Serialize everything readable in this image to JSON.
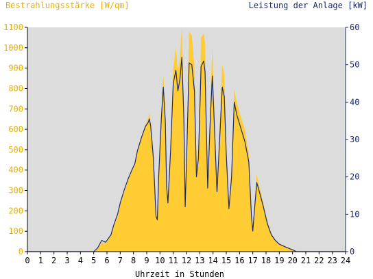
{
  "chart_data": {
    "type": "area",
    "title_left": "Bestrahlungsstärke [W/qm]",
    "title_right": "Leistung der Anlage [kW]",
    "xlabel": "Uhrzeit in Stunden",
    "x_ticks": [
      "0",
      "1",
      "2",
      "3",
      "4",
      "5",
      "6",
      "7",
      "8",
      "9",
      "10",
      "11",
      "12",
      "13",
      "14",
      "15",
      "16",
      "17",
      "18",
      "19",
      "20",
      "21",
      "22",
      "23",
      "24"
    ],
    "y_left_ticks": [
      "0",
      "100",
      "200",
      "300",
      "400",
      "500",
      "600",
      "700",
      "800",
      "900",
      "1000",
      "1100"
    ],
    "y_right_ticks": [
      "0",
      "10",
      "20",
      "30",
      "40",
      "50",
      "60"
    ],
    "ylim_left": [
      0,
      1100
    ],
    "ylim_right": [
      0,
      60
    ],
    "xlim": [
      0,
      24
    ],
    "grid": false,
    "colors": {
      "background": "#dcdcdc",
      "irradiance_fill": "#ffcc33",
      "power_line": "#1a2a6c",
      "left_axis_text": "#e8b000",
      "right_axis_text": "#1a2a6c",
      "axis": "#000000"
    },
    "series": [
      {
        "axis": "left",
        "style": "area",
        "points": [
          [
            0,
            0
          ],
          [
            5.0,
            0
          ],
          [
            5.3,
            15
          ],
          [
            5.6,
            45
          ],
          [
            5.9,
            40
          ],
          [
            6.1,
            60
          ],
          [
            6.3,
            80
          ],
          [
            6.5,
            120
          ],
          [
            6.8,
            170
          ],
          [
            7.0,
            230
          ],
          [
            7.3,
            290
          ],
          [
            7.6,
            350
          ],
          [
            7.9,
            400
          ],
          [
            8.1,
            440
          ],
          [
            8.3,
            500
          ],
          [
            8.6,
            560
          ],
          [
            8.9,
            620
          ],
          [
            9.1,
            650
          ],
          [
            9.2,
            680
          ],
          [
            9.3,
            640
          ],
          [
            9.5,
            500
          ],
          [
            9.7,
            190
          ],
          [
            9.8,
            160
          ],
          [
            9.9,
            400
          ],
          [
            10.1,
            700
          ],
          [
            10.25,
            870
          ],
          [
            10.4,
            700
          ],
          [
            10.5,
            350
          ],
          [
            10.6,
            250
          ],
          [
            10.8,
            520
          ],
          [
            11.0,
            900
          ],
          [
            11.2,
            1000
          ],
          [
            11.35,
            880
          ],
          [
            11.5,
            950
          ],
          [
            11.65,
            1100
          ],
          [
            11.8,
            720
          ],
          [
            11.9,
            250
          ],
          [
            12.0,
            480
          ],
          [
            12.2,
            1080
          ],
          [
            12.4,
            1060
          ],
          [
            12.6,
            900
          ],
          [
            12.75,
            420
          ],
          [
            12.9,
            520
          ],
          [
            13.1,
            1050
          ],
          [
            13.3,
            1070
          ],
          [
            13.4,
            1020
          ],
          [
            13.6,
            360
          ],
          [
            13.8,
            740
          ],
          [
            13.95,
            1000
          ],
          [
            14.1,
            700
          ],
          [
            14.3,
            320
          ],
          [
            14.5,
            620
          ],
          [
            14.7,
            920
          ],
          [
            14.85,
            870
          ],
          [
            15.0,
            530
          ],
          [
            15.2,
            230
          ],
          [
            15.4,
            400
          ],
          [
            15.6,
            800
          ],
          [
            15.8,
            730
          ],
          [
            16.1,
            660
          ],
          [
            16.4,
            600
          ],
          [
            16.7,
            480
          ],
          [
            16.9,
            180
          ],
          [
            17.0,
            110
          ],
          [
            17.1,
            200
          ],
          [
            17.3,
            380
          ],
          [
            17.5,
            320
          ],
          [
            17.8,
            240
          ],
          [
            18.1,
            150
          ],
          [
            18.4,
            90
          ],
          [
            18.7,
            60
          ],
          [
            19.0,
            40
          ],
          [
            19.5,
            25
          ],
          [
            20.0,
            10
          ],
          [
            20.3,
            0
          ],
          [
            24,
            0
          ]
        ]
      },
      {
        "axis": "right",
        "style": "line",
        "points": [
          [
            0,
            0
          ],
          [
            5.0,
            0
          ],
          [
            5.3,
            1
          ],
          [
            5.6,
            3
          ],
          [
            5.9,
            2.5
          ],
          [
            6.1,
            3.5
          ],
          [
            6.3,
            4.5
          ],
          [
            6.5,
            7
          ],
          [
            6.8,
            10
          ],
          [
            7.0,
            13
          ],
          [
            7.3,
            16.5
          ],
          [
            7.6,
            19.5
          ],
          [
            7.9,
            22
          ],
          [
            8.1,
            23.5
          ],
          [
            8.3,
            27
          ],
          [
            8.6,
            30.5
          ],
          [
            8.9,
            33.5
          ],
          [
            9.1,
            34.5
          ],
          [
            9.2,
            35.5
          ],
          [
            9.3,
            33.5
          ],
          [
            9.5,
            25
          ],
          [
            9.7,
            9.5
          ],
          [
            9.8,
            8.5
          ],
          [
            9.9,
            20
          ],
          [
            10.1,
            35.5
          ],
          [
            10.25,
            44
          ],
          [
            10.4,
            35
          ],
          [
            10.5,
            17.5
          ],
          [
            10.6,
            13
          ],
          [
            10.8,
            27
          ],
          [
            11.0,
            45
          ],
          [
            11.2,
            48.5
          ],
          [
            11.35,
            43
          ],
          [
            11.5,
            46
          ],
          [
            11.65,
            52
          ],
          [
            11.8,
            36
          ],
          [
            11.9,
            12
          ],
          [
            12.0,
            24
          ],
          [
            12.2,
            50.5
          ],
          [
            12.4,
            50
          ],
          [
            12.6,
            43
          ],
          [
            12.75,
            20
          ],
          [
            12.9,
            25
          ],
          [
            13.1,
            49.5
          ],
          [
            13.3,
            51
          ],
          [
            13.4,
            48
          ],
          [
            13.6,
            17
          ],
          [
            13.8,
            36
          ],
          [
            13.95,
            47
          ],
          [
            14.1,
            34
          ],
          [
            14.3,
            16
          ],
          [
            14.5,
            30
          ],
          [
            14.7,
            44
          ],
          [
            14.85,
            41.5
          ],
          [
            15.0,
            26
          ],
          [
            15.2,
            11.5
          ],
          [
            15.4,
            20
          ],
          [
            15.6,
            40
          ],
          [
            15.8,
            36.5
          ],
          [
            16.1,
            33
          ],
          [
            16.4,
            29.5
          ],
          [
            16.7,
            24
          ],
          [
            16.9,
            9.5
          ],
          [
            17.0,
            5.5
          ],
          [
            17.1,
            10
          ],
          [
            17.3,
            18.5
          ],
          [
            17.5,
            16
          ],
          [
            17.8,
            12
          ],
          [
            18.1,
            7.5
          ],
          [
            18.4,
            4.5
          ],
          [
            18.7,
            3
          ],
          [
            19.0,
            2
          ],
          [
            19.5,
            1.2
          ],
          [
            20.0,
            0.5
          ],
          [
            20.3,
            0
          ],
          [
            24,
            0
          ]
        ]
      }
    ]
  }
}
